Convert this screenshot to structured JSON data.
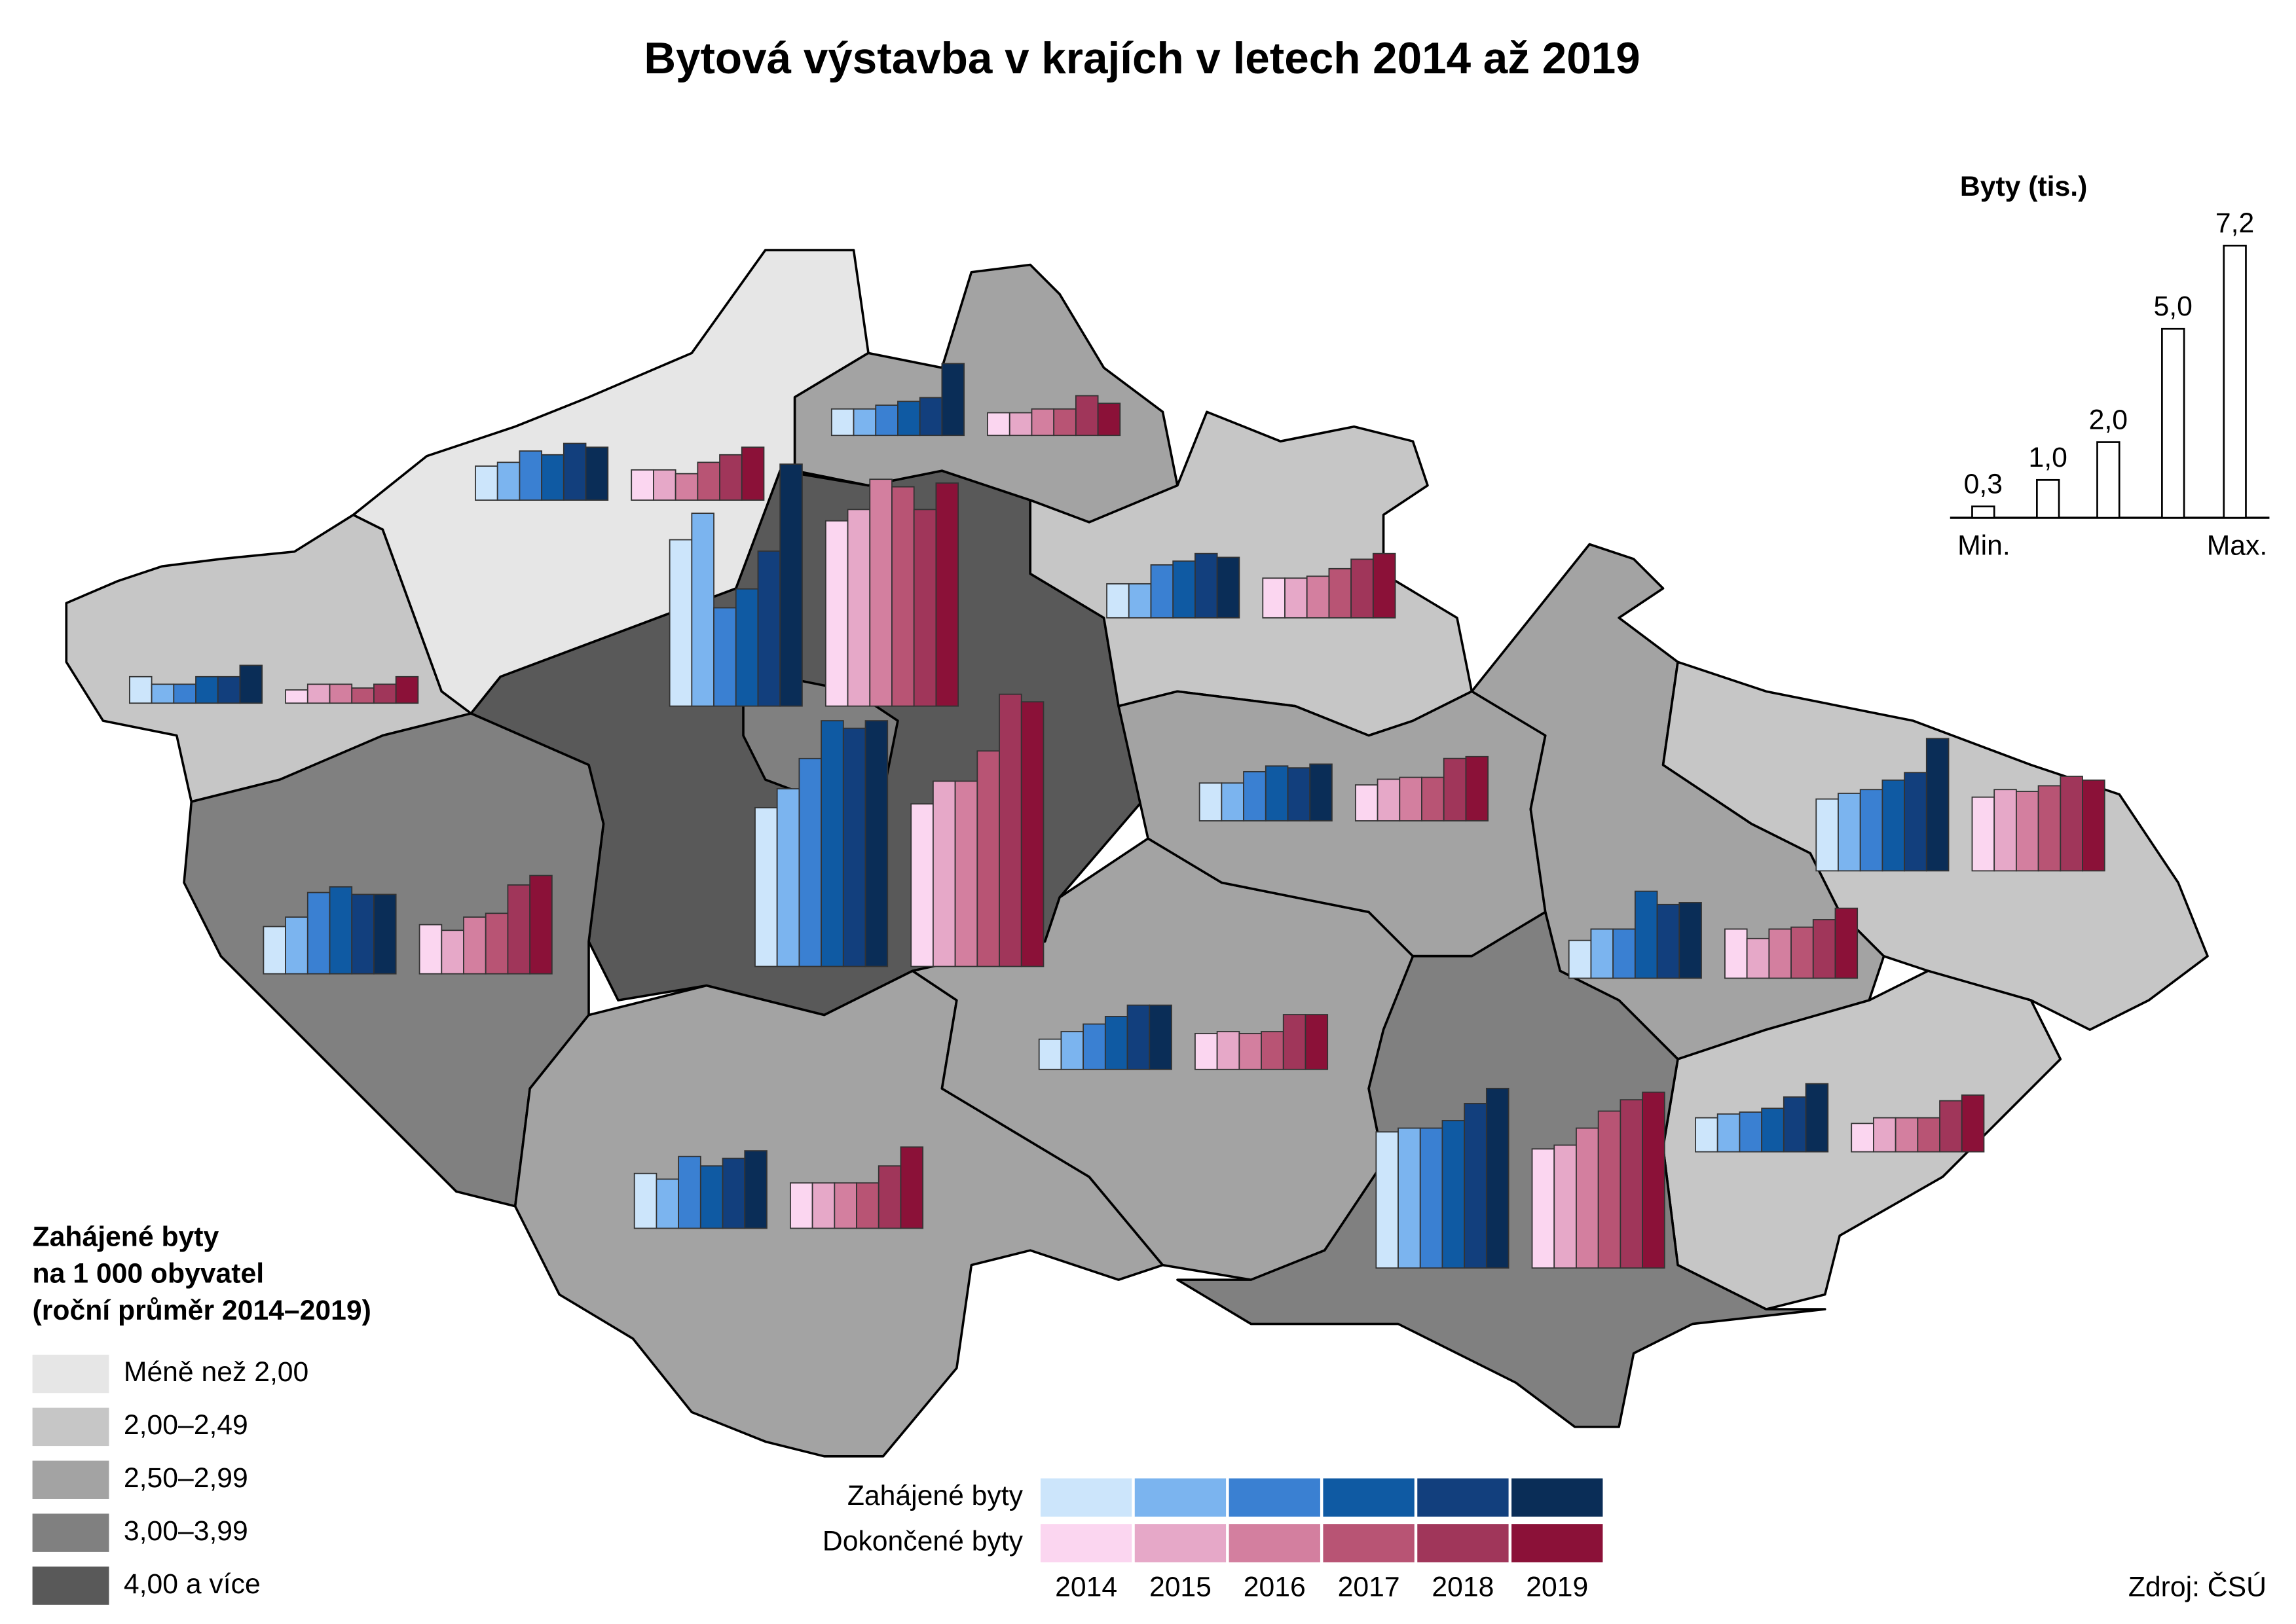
{
  "title": "Bytová výstavba v krajích v letech 2014 až 2019",
  "choropleth_legend": {
    "title_lines": [
      "Zahájené byty",
      "na 1 000 obyvatel",
      "(roční průměr 2014–2019)"
    ],
    "classes": [
      {
        "label": "Méně než 2,00",
        "color": "#e6e6e6"
      },
      {
        "label": "2,00–2,49",
        "color": "#c6c6c6"
      },
      {
        "label": "2,50–2,99",
        "color": "#a3a3a3"
      },
      {
        "label": "3,00–3,99",
        "color": "#808080"
      },
      {
        "label": "4,00 a více",
        "color": "#595959"
      }
    ]
  },
  "series_legend": {
    "series": [
      {
        "name": "Zahájené byty",
        "colors": [
          "#cce5fb",
          "#7bb4ef",
          "#3a80d2",
          "#0f5aa3",
          "#123f7d",
          "#0a2d57"
        ]
      },
      {
        "name": "Dokončené byty",
        "colors": [
          "#fbd6f0",
          "#e6a8c8",
          "#d37f9f",
          "#b85474",
          "#a0365a",
          "#8b1138"
        ]
      }
    ],
    "years": [
      "2014",
      "2015",
      "2016",
      "2017",
      "2018",
      "2019"
    ]
  },
  "size_key": {
    "title": "Byty (tis.)",
    "values": [
      0.3,
      1,
      2,
      5,
      7.2
    ],
    "value_labels": [
      "0,3",
      "1,0",
      "2,0",
      "5,0",
      "7,2"
    ],
    "min_label": "Min.",
    "max_label": "Max."
  },
  "regions": [
    {
      "category": 3,
      "started": [
        4.4,
        5.1,
        2.6,
        3.1,
        4.1,
        6.4
      ],
      "completed": [
        4.9,
        5.2,
        6.0,
        5.8,
        5.2,
        5.9
      ]
    },
    {
      "category": 4,
      "started": [
        4.2,
        4.7,
        5.5,
        6.5,
        6.3,
        6.5
      ],
      "completed": [
        4.3,
        4.9,
        4.9,
        5.7,
        7.2,
        7.0
      ]
    },
    {
      "category": 2,
      "started": [
        1.45,
        1.3,
        1.9,
        1.65,
        1.85,
        2.05
      ],
      "completed": [
        1.2,
        1.2,
        1.2,
        1.2,
        1.65,
        2.15
      ]
    },
    {
      "category": 3,
      "started": [
        1.25,
        1.5,
        2.15,
        2.3,
        2.1,
        2.1
      ],
      "completed": [
        1.3,
        1.15,
        1.5,
        1.6,
        2.35,
        2.6
      ]
    },
    {
      "category": 1,
      "started": [
        0.7,
        0.5,
        0.5,
        0.7,
        0.7,
        1.0
      ],
      "completed": [
        0.35,
        0.5,
        0.5,
        0.4,
        0.5,
        0.7
      ]
    },
    {
      "category": 0,
      "started": [
        0.9,
        1.0,
        1.3,
        1.2,
        1.5,
        1.4
      ],
      "completed": [
        0.8,
        0.8,
        0.7,
        1.0,
        1.2,
        1.4
      ]
    },
    {
      "category": 2,
      "started": [
        0.7,
        0.7,
        0.8,
        0.9,
        1.0,
        1.9
      ],
      "completed": [
        0.6,
        0.6,
        0.7,
        0.7,
        1.05,
        0.85
      ]
    },
    {
      "category": 1,
      "started": [
        0.9,
        0.9,
        1.4,
        1.5,
        1.7,
        1.6
      ],
      "completed": [
        1.05,
        1.05,
        1.1,
        1.3,
        1.55,
        1.7
      ]
    },
    {
      "category": 2,
      "started": [
        1.0,
        1.0,
        1.3,
        1.45,
        1.4,
        1.5
      ],
      "completed": [
        0.95,
        1.1,
        1.15,
        1.15,
        1.65,
        1.7
      ]
    },
    {
      "category": 2,
      "started": [
        0.8,
        1.0,
        1.2,
        1.4,
        1.7,
        1.7
      ],
      "completed": [
        0.95,
        1.0,
        0.95,
        1.0,
        1.45,
        1.45
      ]
    },
    {
      "category": 3,
      "started": [
        3.6,
        3.7,
        3.7,
        3.9,
        4.35,
        4.75
      ],
      "completed": [
        3.15,
        3.25,
        3.7,
        4.15,
        4.45,
        4.65
      ]
    },
    {
      "category": 2,
      "started": [
        1.0,
        1.3,
        1.3,
        2.3,
        1.95,
        2.0
      ],
      "completed": [
        1.3,
        1.05,
        1.3,
        1.35,
        1.55,
        1.85
      ]
    },
    {
      "category": 1,
      "started": [
        0.9,
        1.0,
        1.05,
        1.15,
        1.45,
        1.8
      ],
      "completed": [
        0.75,
        0.9,
        0.9,
        0.9,
        1.35,
        1.5
      ]
    },
    {
      "category": 1,
      "started": [
        1.9,
        2.05,
        2.15,
        2.4,
        2.6,
        3.5
      ],
      "completed": [
        1.95,
        2.15,
        2.1,
        2.25,
        2.5,
        2.4
      ]
    }
  ],
  "source": "Zdroj: ČSÚ"
}
